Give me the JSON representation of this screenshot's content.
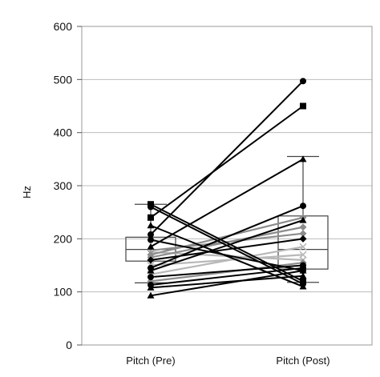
{
  "chart_data": {
    "type": "box-plot with paired lines",
    "title": "",
    "xlabel": "",
    "ylabel": "Hz",
    "ylim": [
      0,
      600
    ],
    "yticks": [
      0,
      100,
      200,
      300,
      400,
      500,
      600
    ],
    "grid": "horizontal",
    "categories": [
      "Pitch (Pre)",
      "Pitch (Post)"
    ],
    "colors": {
      "black": "#000000",
      "gray": "#8c8c8c",
      "lightgray": "#b8b8b8",
      "box_stroke": "#444444",
      "grid": "#bdbdbd"
    },
    "boxes": [
      {
        "category": "Pitch (Pre)",
        "whisker_low": 117,
        "q1": 158,
        "median": 180,
        "q3": 203,
        "whisker_high": 265
      },
      {
        "category": "Pitch (Post)",
        "whisker_low": 118,
        "q1": 143,
        "median": 180,
        "q3": 243,
        "whisker_high": 355
      }
    ],
    "pairs": [
      {
        "pre": 265,
        "post": 120,
        "color": "black",
        "marker": "square"
      },
      {
        "pre": 260,
        "post": 115,
        "color": "black",
        "marker": "circle"
      },
      {
        "pre": 240,
        "post": 450,
        "color": "black",
        "marker": "square"
      },
      {
        "pre": 225,
        "post": 110,
        "color": "black",
        "marker": "triangle"
      },
      {
        "pre": 208,
        "post": 497,
        "color": "black",
        "marker": "circle"
      },
      {
        "pre": 198,
        "post": 140,
        "color": "black",
        "marker": "circle"
      },
      {
        "pre": 185,
        "post": 350,
        "color": "black",
        "marker": "triangle"
      },
      {
        "pre": 178,
        "post": 210,
        "color": "gray",
        "marker": "diamond"
      },
      {
        "pre": 175,
        "post": 160,
        "color": "lightgray",
        "marker": "x"
      },
      {
        "pre": 170,
        "post": 240,
        "color": "gray",
        "marker": "diamond"
      },
      {
        "pre": 165,
        "post": 222,
        "color": "gray",
        "marker": "diamond"
      },
      {
        "pre": 160,
        "post": 200,
        "color": "black",
        "marker": "diamond"
      },
      {
        "pre": 150,
        "post": 170,
        "color": "lightgray",
        "marker": "x"
      },
      {
        "pre": 145,
        "post": 262,
        "color": "black",
        "marker": "circle"
      },
      {
        "pre": 140,
        "post": 235,
        "color": "black",
        "marker": "triangle"
      },
      {
        "pre": 133,
        "post": 185,
        "color": "lightgray",
        "marker": "x"
      },
      {
        "pre": 128,
        "post": 150,
        "color": "black",
        "marker": "circle"
      },
      {
        "pre": 120,
        "post": 155,
        "color": "gray",
        "marker": "diamond"
      },
      {
        "pre": 113,
        "post": 145,
        "color": "black",
        "marker": "circle"
      },
      {
        "pre": 108,
        "post": 130,
        "color": "black",
        "marker": "triangle"
      },
      {
        "pre": 93,
        "post": 140,
        "color": "black",
        "marker": "triangle"
      }
    ]
  }
}
